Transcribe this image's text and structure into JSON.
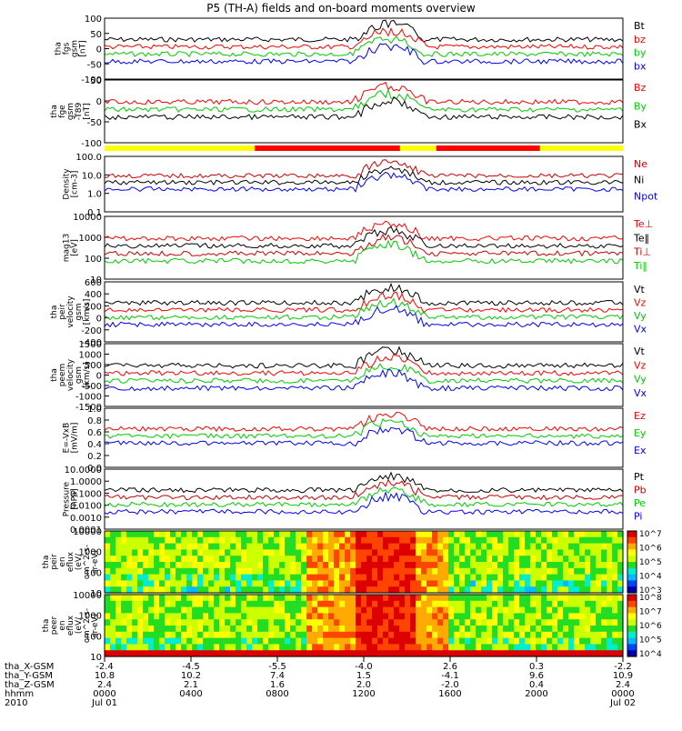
{
  "title": "P5 (TH-A) fields and on-board moments overview",
  "chart_data": [
    {
      "id": "fgs",
      "type": "line",
      "ylabel": [
        "tha",
        "fgs",
        "gsm",
        "[nT]"
      ],
      "ylim": [
        -100,
        100
      ],
      "yticks": [
        "100",
        "50",
        "0",
        "-50",
        "-100"
      ],
      "series": [
        {
          "name": "Bt",
          "color": "#000000"
        },
        {
          "name": "bz",
          "color": "#ff0000"
        },
        {
          "name": "by",
          "color": "#00cc00"
        },
        {
          "name": "bx",
          "color": "#0000ff"
        }
      ]
    },
    {
      "id": "fge",
      "type": "line",
      "ylabel": [
        "tha",
        "fge",
        "gsm",
        "-T89",
        "[nT]"
      ],
      "ylim": [
        -130,
        80
      ],
      "yticks": [
        "50",
        "0",
        "-50",
        "-100"
      ],
      "series": [
        {
          "name": "Bz",
          "color": "#ff0000"
        },
        {
          "name": "By",
          "color": "#00cc00"
        },
        {
          "name": "Bx",
          "color": "#000000"
        }
      ]
    },
    {
      "id": "density",
      "type": "line",
      "ylabel": [
        "Density",
        "[cm-3]"
      ],
      "log": true,
      "yticks": [
        "100.0",
        "10.0",
        "1.0",
        "0.1"
      ],
      "series": [
        {
          "name": "Ne",
          "color": "#cc0000"
        },
        {
          "name": "Ni",
          "color": "#000000"
        },
        {
          "name": "Npot",
          "color": "#0000ff"
        }
      ]
    },
    {
      "id": "temp",
      "type": "line",
      "ylabel": [
        "mag13",
        "[eV]"
      ],
      "log": true,
      "yticks": [
        "10000",
        "1000",
        "100",
        "10"
      ],
      "series": [
        {
          "name": "Te⊥",
          "color": "#ff0000"
        },
        {
          "name": "Te‖",
          "color": "#000000"
        },
        {
          "name": "Ti⊥",
          "color": "#cc0000"
        },
        {
          "name": "Ti‖",
          "color": "#00cc00"
        }
      ]
    },
    {
      "id": "peir",
      "type": "line",
      "ylabel": [
        "tha",
        "peir",
        "velocity",
        "gsm",
        "[km/s]"
      ],
      "ylim": [
        -400,
        600
      ],
      "yticks": [
        "600",
        "400",
        "200",
        "0",
        "-200",
        "-400"
      ],
      "series": [
        {
          "name": "Vt",
          "color": "#000000"
        },
        {
          "name": "Vz",
          "color": "#ff0000"
        },
        {
          "name": "Vy",
          "color": "#00cc00"
        },
        {
          "name": "Vx",
          "color": "#0000ff"
        }
      ]
    },
    {
      "id": "peem",
      "type": "line",
      "ylabel": [
        "tha",
        "peem",
        "velocity",
        "gsm",
        "[km/s]"
      ],
      "ylim": [
        -1500,
        1500
      ],
      "yticks": [
        "1500",
        "1000",
        "500",
        "0",
        "-500",
        "-1000",
        "-1500"
      ],
      "series": [
        {
          "name": "Vt",
          "color": "#000000"
        },
        {
          "name": "Vz",
          "color": "#ff0000"
        },
        {
          "name": "Vy",
          "color": "#00cc00"
        },
        {
          "name": "Vx",
          "color": "#0000ff"
        }
      ]
    },
    {
      "id": "efield",
      "type": "line",
      "ylabel": [
        "E=-VxB",
        "[mV/m]"
      ],
      "ylim": [
        0,
        1
      ],
      "yticks": [
        "1.0",
        "0.8",
        "0.6",
        "0.4",
        "0.2",
        "0.0"
      ],
      "series": [
        {
          "name": "Ez",
          "color": "#ff0000"
        },
        {
          "name": "Ey",
          "color": "#00cc00"
        },
        {
          "name": "Ex",
          "color": "#0000ff"
        }
      ]
    },
    {
      "id": "pressure",
      "type": "line",
      "ylabel": [
        "Pressure",
        "[nPa]"
      ],
      "log": true,
      "yticks": [
        "10.0000",
        "1.0000",
        "0.1000",
        "0.0100",
        "0.0010",
        "0.0001"
      ],
      "series": [
        {
          "name": "Pt",
          "color": "#000000"
        },
        {
          "name": "Pb",
          "color": "#cc0000"
        },
        {
          "name": "Pe",
          "color": "#00cc00"
        },
        {
          "name": "Pi",
          "color": "#0000ff"
        }
      ]
    },
    {
      "id": "peir_spec",
      "type": "heatmap",
      "ylabel": [
        "tha",
        "peir",
        "en",
        "eflux",
        "(eV/",
        "cm^2-s-",
        "sr-eV)"
      ],
      "yticks": [
        "10000",
        "1000",
        "100",
        "10"
      ],
      "colorbar": [
        "10^7",
        "10^6",
        "10^5",
        "10^4",
        "10^3"
      ]
    },
    {
      "id": "peer_spec",
      "type": "heatmap",
      "ylabel": [
        "tha",
        "peer",
        "en",
        "eflux",
        "(eV/",
        "cm^2-s-",
        "sr-eV)"
      ],
      "yticks": [
        "10000",
        "1000",
        "100",
        "10"
      ],
      "colorbar": [
        "10^8",
        "10^7",
        "10^6",
        "10^5",
        "10^4"
      ]
    }
  ],
  "xaxis": {
    "row_labels": [
      "tha_X-GSM",
      "tha_Y-GSM",
      "tha_Z-GSM",
      "hhmm",
      "2010"
    ],
    "ticks": [
      [
        "-2.4",
        "10.8",
        "2.4",
        "0000",
        "Jul 01"
      ],
      [
        "-4.5",
        "10.2",
        "2.1",
        "0400",
        ""
      ],
      [
        "-5.5",
        "7.4",
        "1.6",
        "0800",
        ""
      ],
      [
        "-4.0",
        "1.5",
        "2.0",
        "1200",
        ""
      ],
      [
        "2.6",
        "-4.1",
        "-2.0",
        "1600",
        ""
      ],
      [
        "0.3",
        "9.6",
        "0.4",
        "2000",
        ""
      ],
      [
        "-2.2",
        "10.9",
        "2.4",
        "0000",
        "Jul 02"
      ]
    ]
  }
}
